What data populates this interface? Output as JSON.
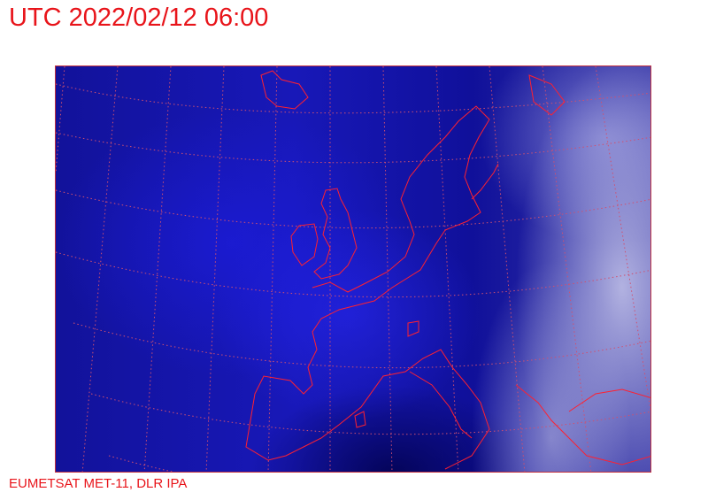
{
  "header": {
    "title": "UTC 2022/02/12 06:00"
  },
  "footer": {
    "credit": "EUMETSAT MET-11, DLR IPA"
  },
  "map": {
    "imagery": "satellite composite over Europe and North Atlantic",
    "overlay": [
      "coastlines",
      "lat-lon graticule"
    ],
    "colors": {
      "text": "#e8141a",
      "coastline": "#ff2030",
      "graticule": "#d05070",
      "ocean": "#1818b8"
    }
  }
}
